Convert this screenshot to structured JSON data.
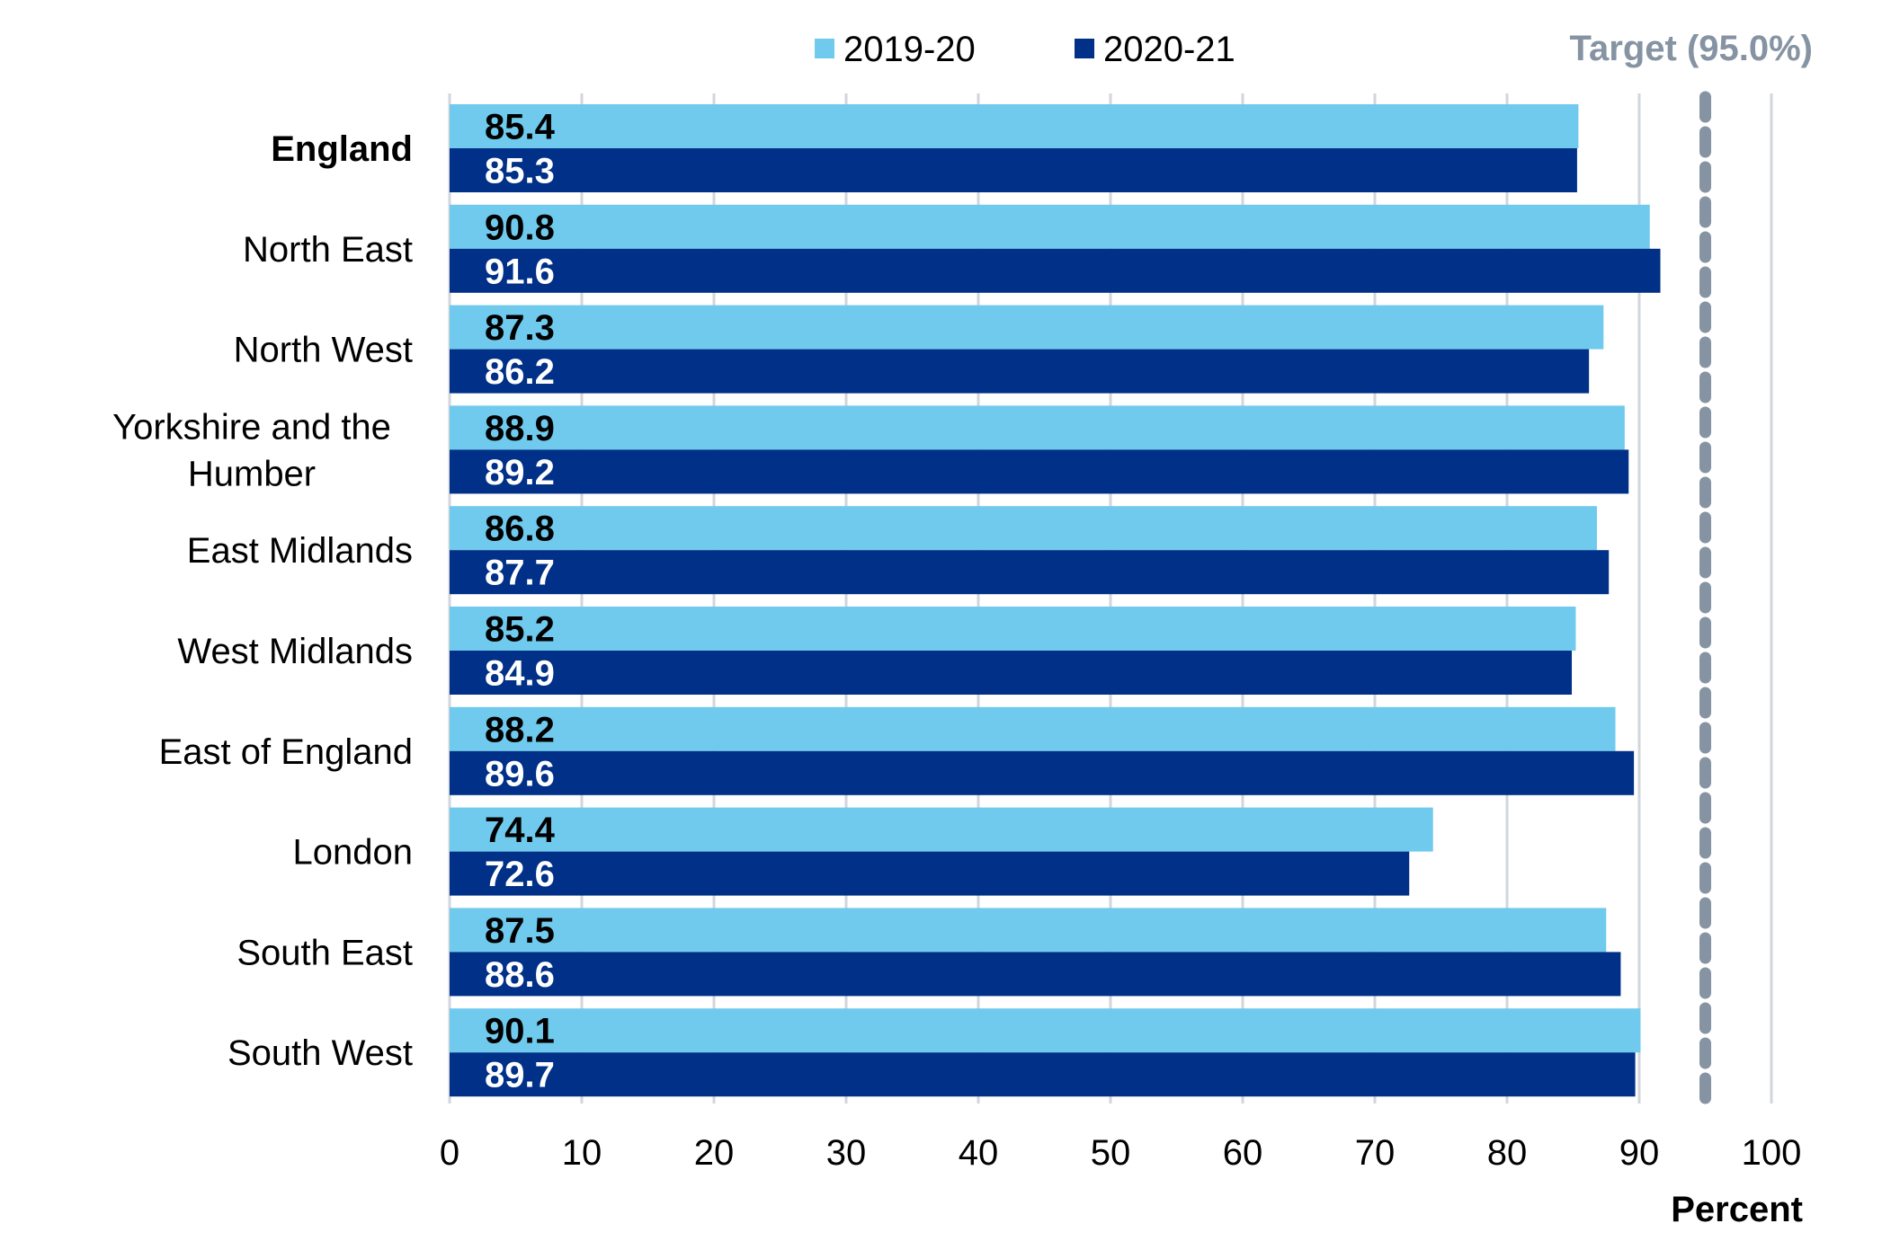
{
  "chart_data": {
    "type": "bar",
    "orientation": "horizontal",
    "categories": [
      "England",
      "North East",
      "North West",
      "Yorkshire and the Humber",
      "East Midlands",
      "West Midlands",
      "East of England",
      "London",
      "South East",
      "South West"
    ],
    "category_lines": [
      [
        "England"
      ],
      [
        "North East"
      ],
      [
        "North West"
      ],
      [
        "Yorkshire and the",
        "Humber"
      ],
      [
        "East Midlands"
      ],
      [
        "West Midlands"
      ],
      [
        "East of England"
      ],
      [
        "London"
      ],
      [
        "South East"
      ],
      [
        "South West"
      ]
    ],
    "series": [
      {
        "name": "2019-20",
        "color": "#6fcaee",
        "label_color": "#000000",
        "values": [
          85.4,
          90.8,
          87.3,
          88.9,
          86.8,
          85.2,
          88.2,
          74.4,
          87.5,
          90.1
        ]
      },
      {
        "name": "2020-21",
        "color": "#003087",
        "label_color": "#ffffff",
        "values": [
          85.3,
          91.6,
          86.2,
          89.2,
          87.7,
          84.9,
          89.6,
          72.6,
          88.6,
          89.7
        ]
      }
    ],
    "value_labels": [
      [
        "85.4",
        "90.8",
        "87.3",
        "88.9",
        "86.8",
        "85.2",
        "88.2",
        "74.4",
        "87.5",
        "90.1"
      ],
      [
        "85.3",
        "91.6",
        "86.2",
        "89.2",
        "87.7",
        "84.9",
        "89.6",
        "72.6",
        "88.6",
        "89.7"
      ]
    ],
    "target": {
      "value": 95.0,
      "label": "Target (95.0%)",
      "color": "#8593a3"
    },
    "xlabel": "Percent",
    "ylabel": "",
    "xlim": [
      0,
      100
    ],
    "xticks": [
      0,
      10,
      20,
      30,
      40,
      50,
      60,
      70,
      80,
      90,
      100
    ],
    "grid": true,
    "legend_position": "top",
    "highlight_category": "England",
    "gridline_color": "#d1d6dd"
  }
}
